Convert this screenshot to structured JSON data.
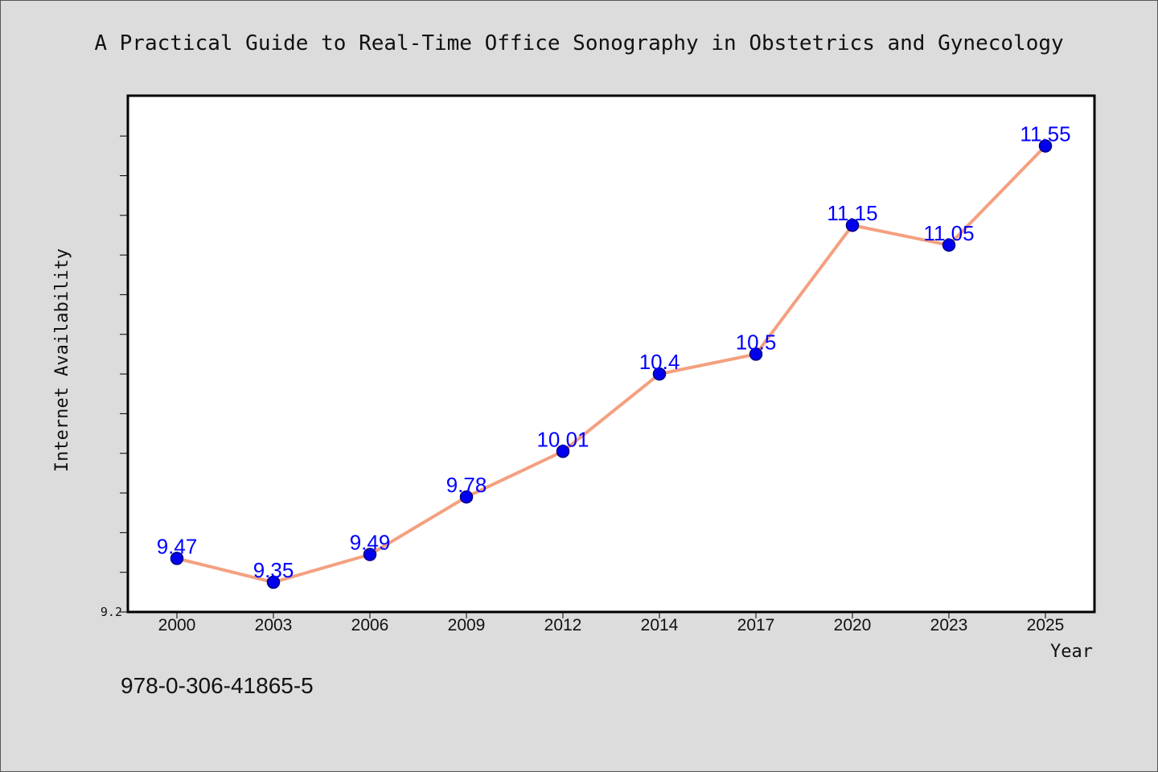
{
  "chart_data": {
    "type": "line",
    "title": "A Practical Guide to Real-Time Office Sonography in Obstetrics and Gynecology",
    "xlabel": "Year",
    "ylabel": "Internet Availability",
    "categories": [
      "2000",
      "2003",
      "2006",
      "2009",
      "2012",
      "2014",
      "2017",
      "2020",
      "2023",
      "2025"
    ],
    "series": [
      {
        "values": [
          9.47,
          9.35,
          9.49,
          9.78,
          10.01,
          10.4,
          10.5,
          11.15,
          11.05,
          11.55
        ]
      }
    ],
    "data_labels": [
      "9.47",
      "9.35",
      "9.49",
      "9.78",
      "10.01",
      "10.4",
      "10.5",
      "11.15",
      "11.05",
      "11.55"
    ],
    "ylim": [
      9.2,
      11.8
    ],
    "yticks_labeled": [
      "9.2"
    ],
    "grid": false,
    "legend": "none",
    "colors": {
      "line": "#f4a07f",
      "marker": "#0000ee",
      "marker_edge": "#000080",
      "data_label": "#0000ff",
      "background": "#dcdcdc",
      "plot_background": "#ffffff"
    }
  },
  "footer": {
    "isbn": "978-0-306-41865-5"
  }
}
